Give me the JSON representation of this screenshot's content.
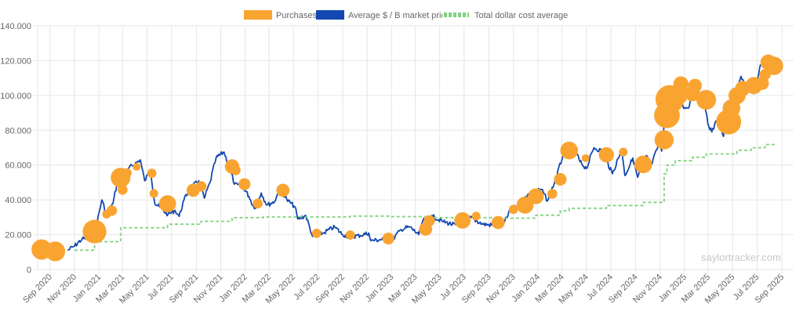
{
  "colors": {
    "purchases": "#f9a431",
    "price_line": "#1348b0",
    "cost_avg": "#7fd27f",
    "grid": "#e6e6e6",
    "axis_text": "#666666"
  },
  "legend": [
    {
      "label": "Purchases",
      "key": "purchases",
      "style": "box"
    },
    {
      "label": "Average $ / B market price",
      "key": "price_line",
      "style": "box"
    },
    {
      "label": "Total dollar cost average",
      "key": "cost_avg",
      "style": "dashed"
    }
  ],
  "watermark": "saylortracker.com",
  "chart_data": {
    "type": "line",
    "title": "",
    "xlabel": "",
    "ylabel": "",
    "x_start": "2020-08-01",
    "x_end": "2025-09-30",
    "ylim": [
      0,
      140000
    ],
    "yticks": [
      {
        "value": 0,
        "label": "0"
      },
      {
        "value": 20000,
        "label": "20.000"
      },
      {
        "value": 40000,
        "label": "40.000"
      },
      {
        "value": 60000,
        "label": "60.000"
      },
      {
        "value": 80000,
        "label": "80.000"
      },
      {
        "value": 100000,
        "label": "100.000"
      },
      {
        "value": 120000,
        "label": "120.000"
      },
      {
        "value": 140000,
        "label": "140.000"
      }
    ],
    "xticks": [
      {
        "date": "2020-09-01",
        "label": "Sep 2020"
      },
      {
        "date": "2020-11-01",
        "label": "Nov 2020"
      },
      {
        "date": "2021-01-01",
        "label": "Jan 2021"
      },
      {
        "date": "2021-03-01",
        "label": "Mar 2021"
      },
      {
        "date": "2021-05-01",
        "label": "May 2021"
      },
      {
        "date": "2021-07-01",
        "label": "Jul 2021"
      },
      {
        "date": "2021-09-01",
        "label": "Sep 2021"
      },
      {
        "date": "2021-11-01",
        "label": "Nov 2021"
      },
      {
        "date": "2022-01-01",
        "label": "Jan 2022"
      },
      {
        "date": "2022-03-01",
        "label": "Mar 2022"
      },
      {
        "date": "2022-05-01",
        "label": "May 2022"
      },
      {
        "date": "2022-07-01",
        "label": "Jul 2022"
      },
      {
        "date": "2022-09-01",
        "label": "Sep 2022"
      },
      {
        "date": "2022-11-01",
        "label": "Nov 2022"
      },
      {
        "date": "2023-01-01",
        "label": "Jan 2023"
      },
      {
        "date": "2023-03-01",
        "label": "Mar 2023"
      },
      {
        "date": "2023-05-01",
        "label": "May 2023"
      },
      {
        "date": "2023-07-01",
        "label": "Jul 2023"
      },
      {
        "date": "2023-09-01",
        "label": "Sep 2023"
      },
      {
        "date": "2023-11-01",
        "label": "Nov 2023"
      },
      {
        "date": "2024-01-01",
        "label": "Jan 2024"
      },
      {
        "date": "2024-03-01",
        "label": "Mar 2024"
      },
      {
        "date": "2024-05-01",
        "label": "May 2024"
      },
      {
        "date": "2024-07-01",
        "label": "Jul 2024"
      },
      {
        "date": "2024-09-01",
        "label": "Sep 2024"
      },
      {
        "date": "2024-11-01",
        "label": "Nov 2024"
      },
      {
        "date": "2025-01-01",
        "label": "Jan 2025"
      },
      {
        "date": "2025-03-01",
        "label": "Mar 2025"
      },
      {
        "date": "2025-05-01",
        "label": "May 2025"
      },
      {
        "date": "2025-07-01",
        "label": "Jul 2025"
      },
      {
        "date": "2025-09-01",
        "label": "Sep 2025"
      }
    ],
    "series": [
      {
        "name": "Average $ / B market price",
        "kind": "line",
        "points": [
          [
            "2020-10-15",
            11000
          ],
          [
            "2020-11-01",
            13500
          ],
          [
            "2020-11-20",
            17500
          ],
          [
            "2020-12-10",
            18500
          ],
          [
            "2020-12-25",
            24500
          ],
          [
            "2021-01-08",
            40000
          ],
          [
            "2021-01-20",
            32000
          ],
          [
            "2021-02-05",
            38000
          ],
          [
            "2021-02-20",
            55000
          ],
          [
            "2021-03-05",
            48000
          ],
          [
            "2021-03-15",
            58000
          ],
          [
            "2021-04-14",
            63000
          ],
          [
            "2021-04-25",
            51000
          ],
          [
            "2021-05-10",
            57000
          ],
          [
            "2021-05-20",
            38000
          ],
          [
            "2021-06-01",
            36000
          ],
          [
            "2021-06-22",
            31500
          ],
          [
            "2021-07-10",
            34000
          ],
          [
            "2021-07-20",
            30500
          ],
          [
            "2021-08-01",
            40000
          ],
          [
            "2021-08-15",
            46000
          ],
          [
            "2021-09-07",
            51000
          ],
          [
            "2021-09-21",
            41000
          ],
          [
            "2021-10-05",
            50000
          ],
          [
            "2021-10-20",
            64000
          ],
          [
            "2021-11-09",
            67500
          ],
          [
            "2021-11-25",
            57000
          ],
          [
            "2021-12-05",
            49000
          ],
          [
            "2021-12-28",
            47000
          ],
          [
            "2022-01-10",
            42000
          ],
          [
            "2022-01-24",
            35000
          ],
          [
            "2022-02-10",
            44000
          ],
          [
            "2022-02-24",
            37000
          ],
          [
            "2022-03-15",
            39000
          ],
          [
            "2022-03-29",
            47000
          ],
          [
            "2022-04-15",
            40000
          ],
          [
            "2022-05-05",
            36000
          ],
          [
            "2022-05-12",
            29000
          ],
          [
            "2022-06-01",
            31000
          ],
          [
            "2022-06-18",
            19000
          ],
          [
            "2022-07-15",
            21000
          ],
          [
            "2022-08-12",
            24500
          ],
          [
            "2022-09-01",
            20000
          ],
          [
            "2022-09-20",
            19000
          ],
          [
            "2022-10-15",
            19500
          ],
          [
            "2022-11-05",
            21000
          ],
          [
            "2022-11-10",
            16500
          ],
          [
            "2022-12-15",
            17500
          ],
          [
            "2023-01-01",
            16600
          ],
          [
            "2023-01-25",
            23000
          ],
          [
            "2023-02-15",
            24500
          ],
          [
            "2023-03-10",
            20000
          ],
          [
            "2023-03-20",
            28000
          ],
          [
            "2023-04-14",
            30500
          ],
          [
            "2023-05-10",
            27500
          ],
          [
            "2023-06-15",
            25000
          ],
          [
            "2023-06-25",
            30500
          ],
          [
            "2023-07-15",
            30000
          ],
          [
            "2023-08-17",
            26000
          ],
          [
            "2023-09-10",
            25500
          ],
          [
            "2023-10-10",
            27500
          ],
          [
            "2023-10-25",
            34500
          ],
          [
            "2023-11-15",
            37000
          ],
          [
            "2023-12-08",
            43500
          ],
          [
            "2024-01-10",
            46000
          ],
          [
            "2024-01-25",
            39500
          ],
          [
            "2024-02-15",
            52000
          ],
          [
            "2024-03-05",
            67000
          ],
          [
            "2024-03-14",
            72500
          ],
          [
            "2024-04-01",
            70000
          ],
          [
            "2024-04-15",
            62000
          ],
          [
            "2024-05-01",
            58000
          ],
          [
            "2024-05-20",
            70000
          ],
          [
            "2024-06-10",
            68000
          ],
          [
            "2024-07-05",
            55000
          ],
          [
            "2024-07-28",
            69000
          ],
          [
            "2024-08-05",
            54000
          ],
          [
            "2024-08-25",
            64000
          ],
          [
            "2024-09-06",
            53000
          ],
          [
            "2024-09-28",
            65500
          ],
          [
            "2024-10-10",
            60000
          ],
          [
            "2024-10-29",
            72000
          ],
          [
            "2024-11-05",
            68000
          ],
          [
            "2024-11-13",
            90000
          ],
          [
            "2024-11-22",
            98000
          ],
          [
            "2024-12-05",
            100000
          ],
          [
            "2024-12-17",
            106500
          ],
          [
            "2024-12-30",
            92500
          ],
          [
            "2025-01-13",
            94000
          ],
          [
            "2025-01-20",
            106000
          ],
          [
            "2025-02-05",
            97000
          ],
          [
            "2025-02-20",
            96000
          ],
          [
            "2025-02-28",
            84000
          ],
          [
            "2025-03-10",
            79000
          ],
          [
            "2025-03-25",
            87000
          ],
          [
            "2025-04-08",
            76500
          ],
          [
            "2025-04-25",
            94000
          ],
          [
            "2025-05-10",
            103000
          ],
          [
            "2025-05-22",
            111000
          ],
          [
            "2025-06-05",
            104000
          ],
          [
            "2025-06-22",
            101000
          ],
          [
            "2025-07-14",
            121000
          ],
          [
            "2025-07-28",
            118000
          ]
        ]
      },
      {
        "name": "Total dollar cost average",
        "kind": "step",
        "points": [
          [
            "2020-11-01",
            11100
          ],
          [
            "2020-12-21",
            16000
          ],
          [
            "2021-02-24",
            24000
          ],
          [
            "2021-06-21",
            26000
          ],
          [
            "2021-09-13",
            27700
          ],
          [
            "2021-11-29",
            29800
          ],
          [
            "2022-02-15",
            30200
          ],
          [
            "2022-09-20",
            30700
          ],
          [
            "2022-12-28",
            30400
          ],
          [
            "2023-04-05",
            29800
          ],
          [
            "2023-09-25",
            29500
          ],
          [
            "2023-12-27",
            31200
          ],
          [
            "2024-02-26",
            33700
          ],
          [
            "2024-03-19",
            35200
          ],
          [
            "2024-06-20",
            36800
          ],
          [
            "2024-09-20",
            38600
          ],
          [
            "2024-11-11",
            55000
          ],
          [
            "2024-11-18",
            60000
          ],
          [
            "2024-12-09",
            62500
          ],
          [
            "2025-01-21",
            64500
          ],
          [
            "2025-02-24",
            66400
          ],
          [
            "2025-05-12",
            68500
          ],
          [
            "2025-06-16",
            70000
          ],
          [
            "2025-07-21",
            71800
          ],
          [
            "2025-08-12",
            73300
          ]
        ]
      },
      {
        "name": "Purchases",
        "kind": "bubble",
        "points": [
          {
            "x": "2020-08-11",
            "y": 11500,
            "size": 3.1
          },
          {
            "x": "2020-09-14",
            "y": 10400,
            "size": 3.0
          },
          {
            "x": "2020-12-21",
            "y": 21800,
            "size": 3.6
          },
          {
            "x": "2020-12-10",
            "y": 20500,
            "size": 1.8
          },
          {
            "x": "2021-02-02",
            "y": 33800,
            "size": 1.6
          },
          {
            "x": "2021-01-20",
            "y": 31800,
            "size": 1.3
          },
          {
            "x": "2021-02-24",
            "y": 52800,
            "size": 3.0
          },
          {
            "x": "2021-03-01",
            "y": 45800,
            "size": 1.5
          },
          {
            "x": "2021-03-12",
            "y": 55500,
            "size": 1.4
          },
          {
            "x": "2021-04-05",
            "y": 59000,
            "size": 1.2
          },
          {
            "x": "2021-05-13",
            "y": 55300,
            "size": 1.4
          },
          {
            "x": "2021-05-18",
            "y": 43700,
            "size": 1.3
          },
          {
            "x": "2021-06-21",
            "y": 37800,
            "size": 2.6
          },
          {
            "x": "2021-08-24",
            "y": 45500,
            "size": 2.0
          },
          {
            "x": "2021-09-13",
            "y": 47800,
            "size": 1.6
          },
          {
            "x": "2021-11-29",
            "y": 59200,
            "size": 2.2
          },
          {
            "x": "2021-12-08",
            "y": 57000,
            "size": 1.5
          },
          {
            "x": "2021-12-30",
            "y": 49000,
            "size": 1.8
          },
          {
            "x": "2022-02-01",
            "y": 37900,
            "size": 1.5
          },
          {
            "x": "2022-04-05",
            "y": 45500,
            "size": 2.0
          },
          {
            "x": "2022-06-28",
            "y": 20800,
            "size": 1.4
          },
          {
            "x": "2022-09-20",
            "y": 19800,
            "size": 1.4
          },
          {
            "x": "2022-12-24",
            "y": 17800,
            "size": 1.8
          },
          {
            "x": "2023-03-27",
            "y": 23200,
            "size": 2.0
          },
          {
            "x": "2023-04-05",
            "y": 28000,
            "size": 1.7
          },
          {
            "x": "2023-06-27",
            "y": 28200,
            "size": 2.5
          },
          {
            "x": "2023-07-31",
            "y": 30700,
            "size": 1.3
          },
          {
            "x": "2023-09-24",
            "y": 27000,
            "size": 2.0
          },
          {
            "x": "2023-11-01",
            "y": 34500,
            "size": 1.4
          },
          {
            "x": "2023-11-30",
            "y": 37000,
            "size": 2.6
          },
          {
            "x": "2023-12-27",
            "y": 42100,
            "size": 2.4
          },
          {
            "x": "2024-02-06",
            "y": 43500,
            "size": 1.5
          },
          {
            "x": "2024-02-26",
            "y": 51800,
            "size": 1.9
          },
          {
            "x": "2024-03-19",
            "y": 68400,
            "size": 2.7
          },
          {
            "x": "2024-04-29",
            "y": 64000,
            "size": 1.2
          },
          {
            "x": "2024-06-20",
            "y": 65900,
            "size": 2.3
          },
          {
            "x": "2024-08-01",
            "y": 67500,
            "size": 1.3
          },
          {
            "x": "2024-09-20",
            "y": 60400,
            "size": 2.7
          },
          {
            "x": "2024-11-11",
            "y": 74500,
            "size": 2.9
          },
          {
            "x": "2024-11-18",
            "y": 88600,
            "size": 3.9
          },
          {
            "x": "2024-11-25",
            "y": 97800,
            "size": 4.3
          },
          {
            "x": "2024-12-16",
            "y": 100400,
            "size": 3.0
          },
          {
            "x": "2024-12-23",
            "y": 106600,
            "size": 2.3
          },
          {
            "x": "2025-01-21",
            "y": 101000,
            "size": 2.3
          },
          {
            "x": "2025-01-27",
            "y": 105600,
            "size": 2.1
          },
          {
            "x": "2025-02-24",
            "y": 97500,
            "size": 3.0
          },
          {
            "x": "2025-04-21",
            "y": 84800,
            "size": 3.8
          },
          {
            "x": "2025-04-28",
            "y": 92700,
            "size": 2.7
          },
          {
            "x": "2025-05-12",
            "y": 99900,
            "size": 2.6
          },
          {
            "x": "2025-05-26",
            "y": 104000,
            "size": 2.3
          },
          {
            "x": "2025-06-23",
            "y": 105700,
            "size": 2.6
          },
          {
            "x": "2025-07-14",
            "y": 107000,
            "size": 2.0
          },
          {
            "x": "2025-07-21",
            "y": 112000,
            "size": 1.7
          },
          {
            "x": "2025-07-29",
            "y": 119000,
            "size": 2.4
          },
          {
            "x": "2025-08-12",
            "y": 117000,
            "size": 2.8
          }
        ]
      }
    ],
    "grid": true,
    "legend_position": "top-center"
  }
}
